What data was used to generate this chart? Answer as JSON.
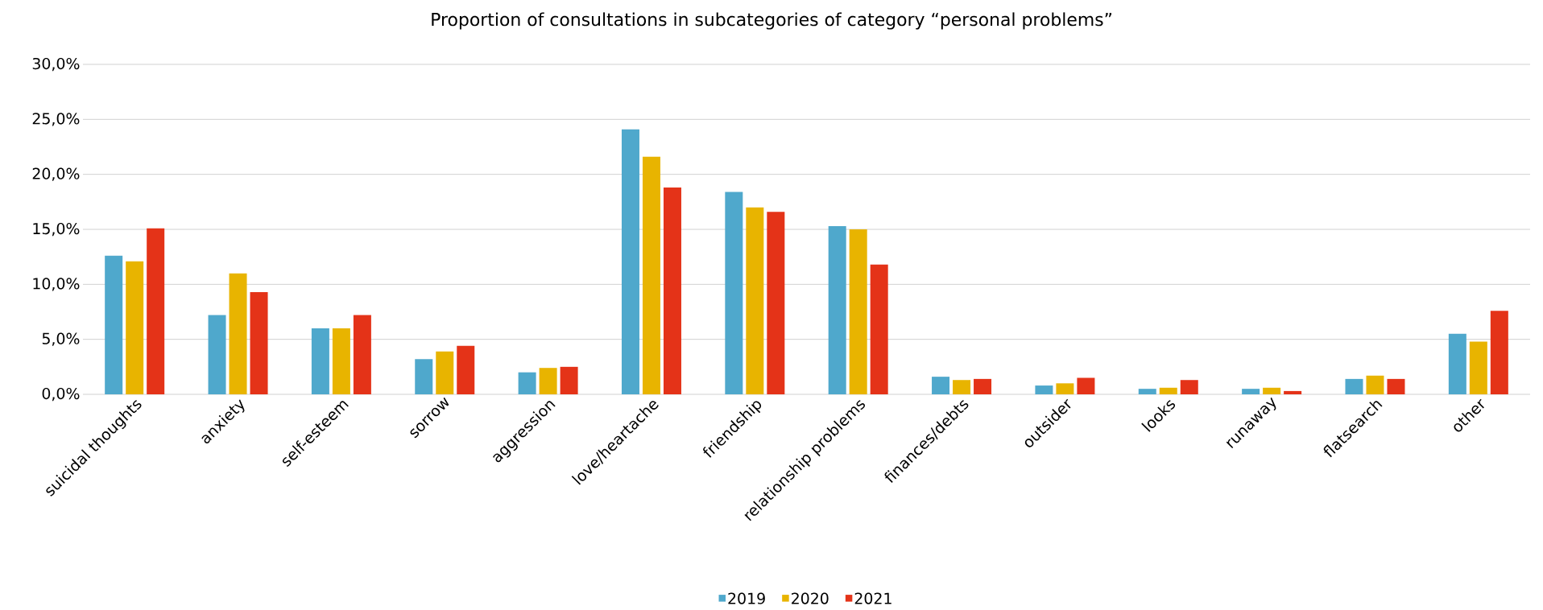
{
  "chart_data": {
    "type": "bar",
    "title": "Proportion of consultations in subcategories of category “personal problems”",
    "categories": [
      "suicidal thoughts",
      "anxiety",
      "self-esteem",
      "sorrow",
      "aggression",
      "love/heartache",
      "friendship",
      "relationship problems",
      "finances/debts",
      "outsider",
      "looks",
      "runaway",
      "flatsearch",
      "other"
    ],
    "series": [
      {
        "name": "2019",
        "color": "#4fa8cc",
        "values": [
          12.6,
          7.2,
          6.0,
          3.2,
          2.0,
          24.1,
          18.4,
          15.3,
          1.6,
          0.8,
          0.5,
          0.5,
          1.4,
          5.5
        ]
      },
      {
        "name": "2020",
        "color": "#e8b400",
        "values": [
          12.1,
          11.0,
          6.0,
          3.9,
          2.4,
          21.6,
          17.0,
          15.0,
          1.3,
          1.0,
          0.6,
          0.6,
          1.7,
          4.8
        ]
      },
      {
        "name": "2021",
        "color": "#e43318",
        "values": [
          15.1,
          9.3,
          7.2,
          4.4,
          2.5,
          18.8,
          16.6,
          11.8,
          1.4,
          1.5,
          1.3,
          0.3,
          1.4,
          7.6
        ]
      }
    ],
    "ylim": [
      0,
      30
    ],
    "yticks": [
      {
        "value": 0,
        "label": "0,0%"
      },
      {
        "value": 5,
        "label": "5,0%"
      },
      {
        "value": 10,
        "label": "10,0%"
      },
      {
        "value": 15,
        "label": "15,0%"
      },
      {
        "value": 20,
        "label": "20,0%"
      },
      {
        "value": 25,
        "label": "25,0%"
      },
      {
        "value": 30,
        "label": "30,0%"
      }
    ],
    "grid": "y",
    "legend": "bottom"
  }
}
